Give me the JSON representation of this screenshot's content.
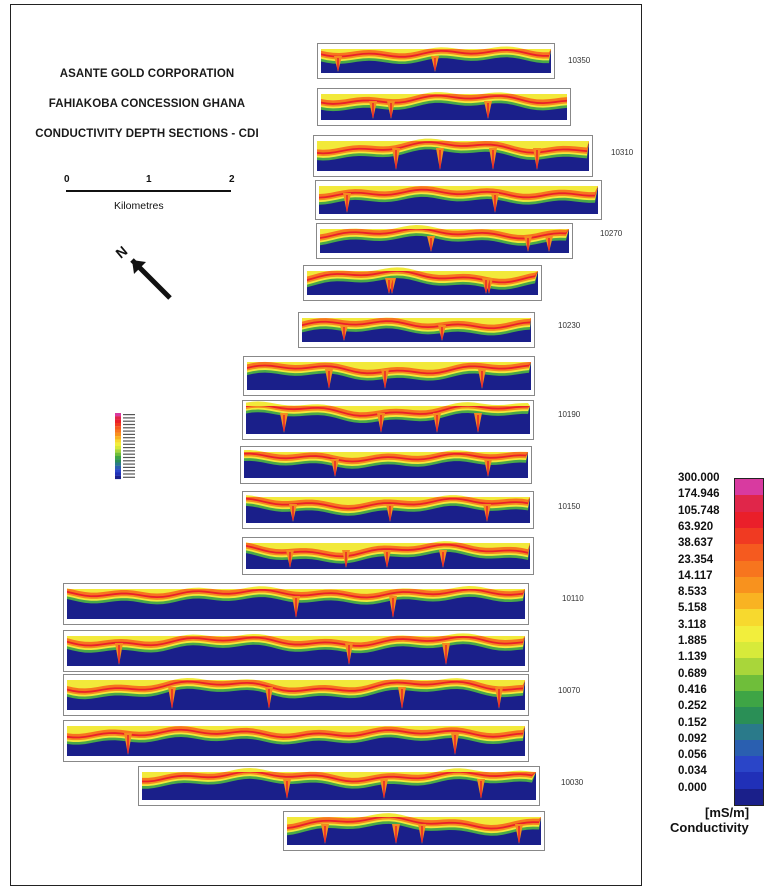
{
  "header": {
    "line1": "ASANTE GOLD CORPORATION",
    "line2": "FAHIAKOBA CONCESSION GHANA",
    "line3": "CONDUCTIVITY DEPTH SECTIONS - CDI"
  },
  "scale": {
    "ticks": [
      "0",
      "1",
      "2"
    ],
    "unit": "Kilometres"
  },
  "north_label": "N",
  "line_numbers": [
    "10350",
    "10310",
    "10270",
    "10230",
    "10190",
    "10150",
    "10110",
    "10070",
    "10030"
  ],
  "colors": {
    "background_blue": "#1a1f8a",
    "red": "#e8232a",
    "orange": "#f58a1f",
    "yellow": "#f2e93a",
    "green": "#49a848"
  },
  "legend": {
    "values": [
      "300.000",
      "174.946",
      "105.748",
      "63.920",
      "38.637",
      "23.354",
      "14.117",
      "8.533",
      "5.158",
      "3.118",
      "1.885",
      "1.139",
      "0.689",
      "0.416",
      "0.252",
      "0.152",
      "0.092",
      "0.056",
      "0.034",
      "0.000"
    ],
    "colors": [
      "#d83aa0",
      "#e0264a",
      "#ea1f2a",
      "#f03a22",
      "#f55a1f",
      "#f7751e",
      "#f8921e",
      "#f9b322",
      "#f7d92e",
      "#f2ee3c",
      "#d7ea3a",
      "#a9d63a",
      "#6fbe3a",
      "#3ea545",
      "#2a8f56",
      "#2a7a8a",
      "#2a5fb0",
      "#2a45c8",
      "#2030b8",
      "#1a1f8a"
    ],
    "units": "[mS/m]",
    "title": "Conductivity"
  }
}
